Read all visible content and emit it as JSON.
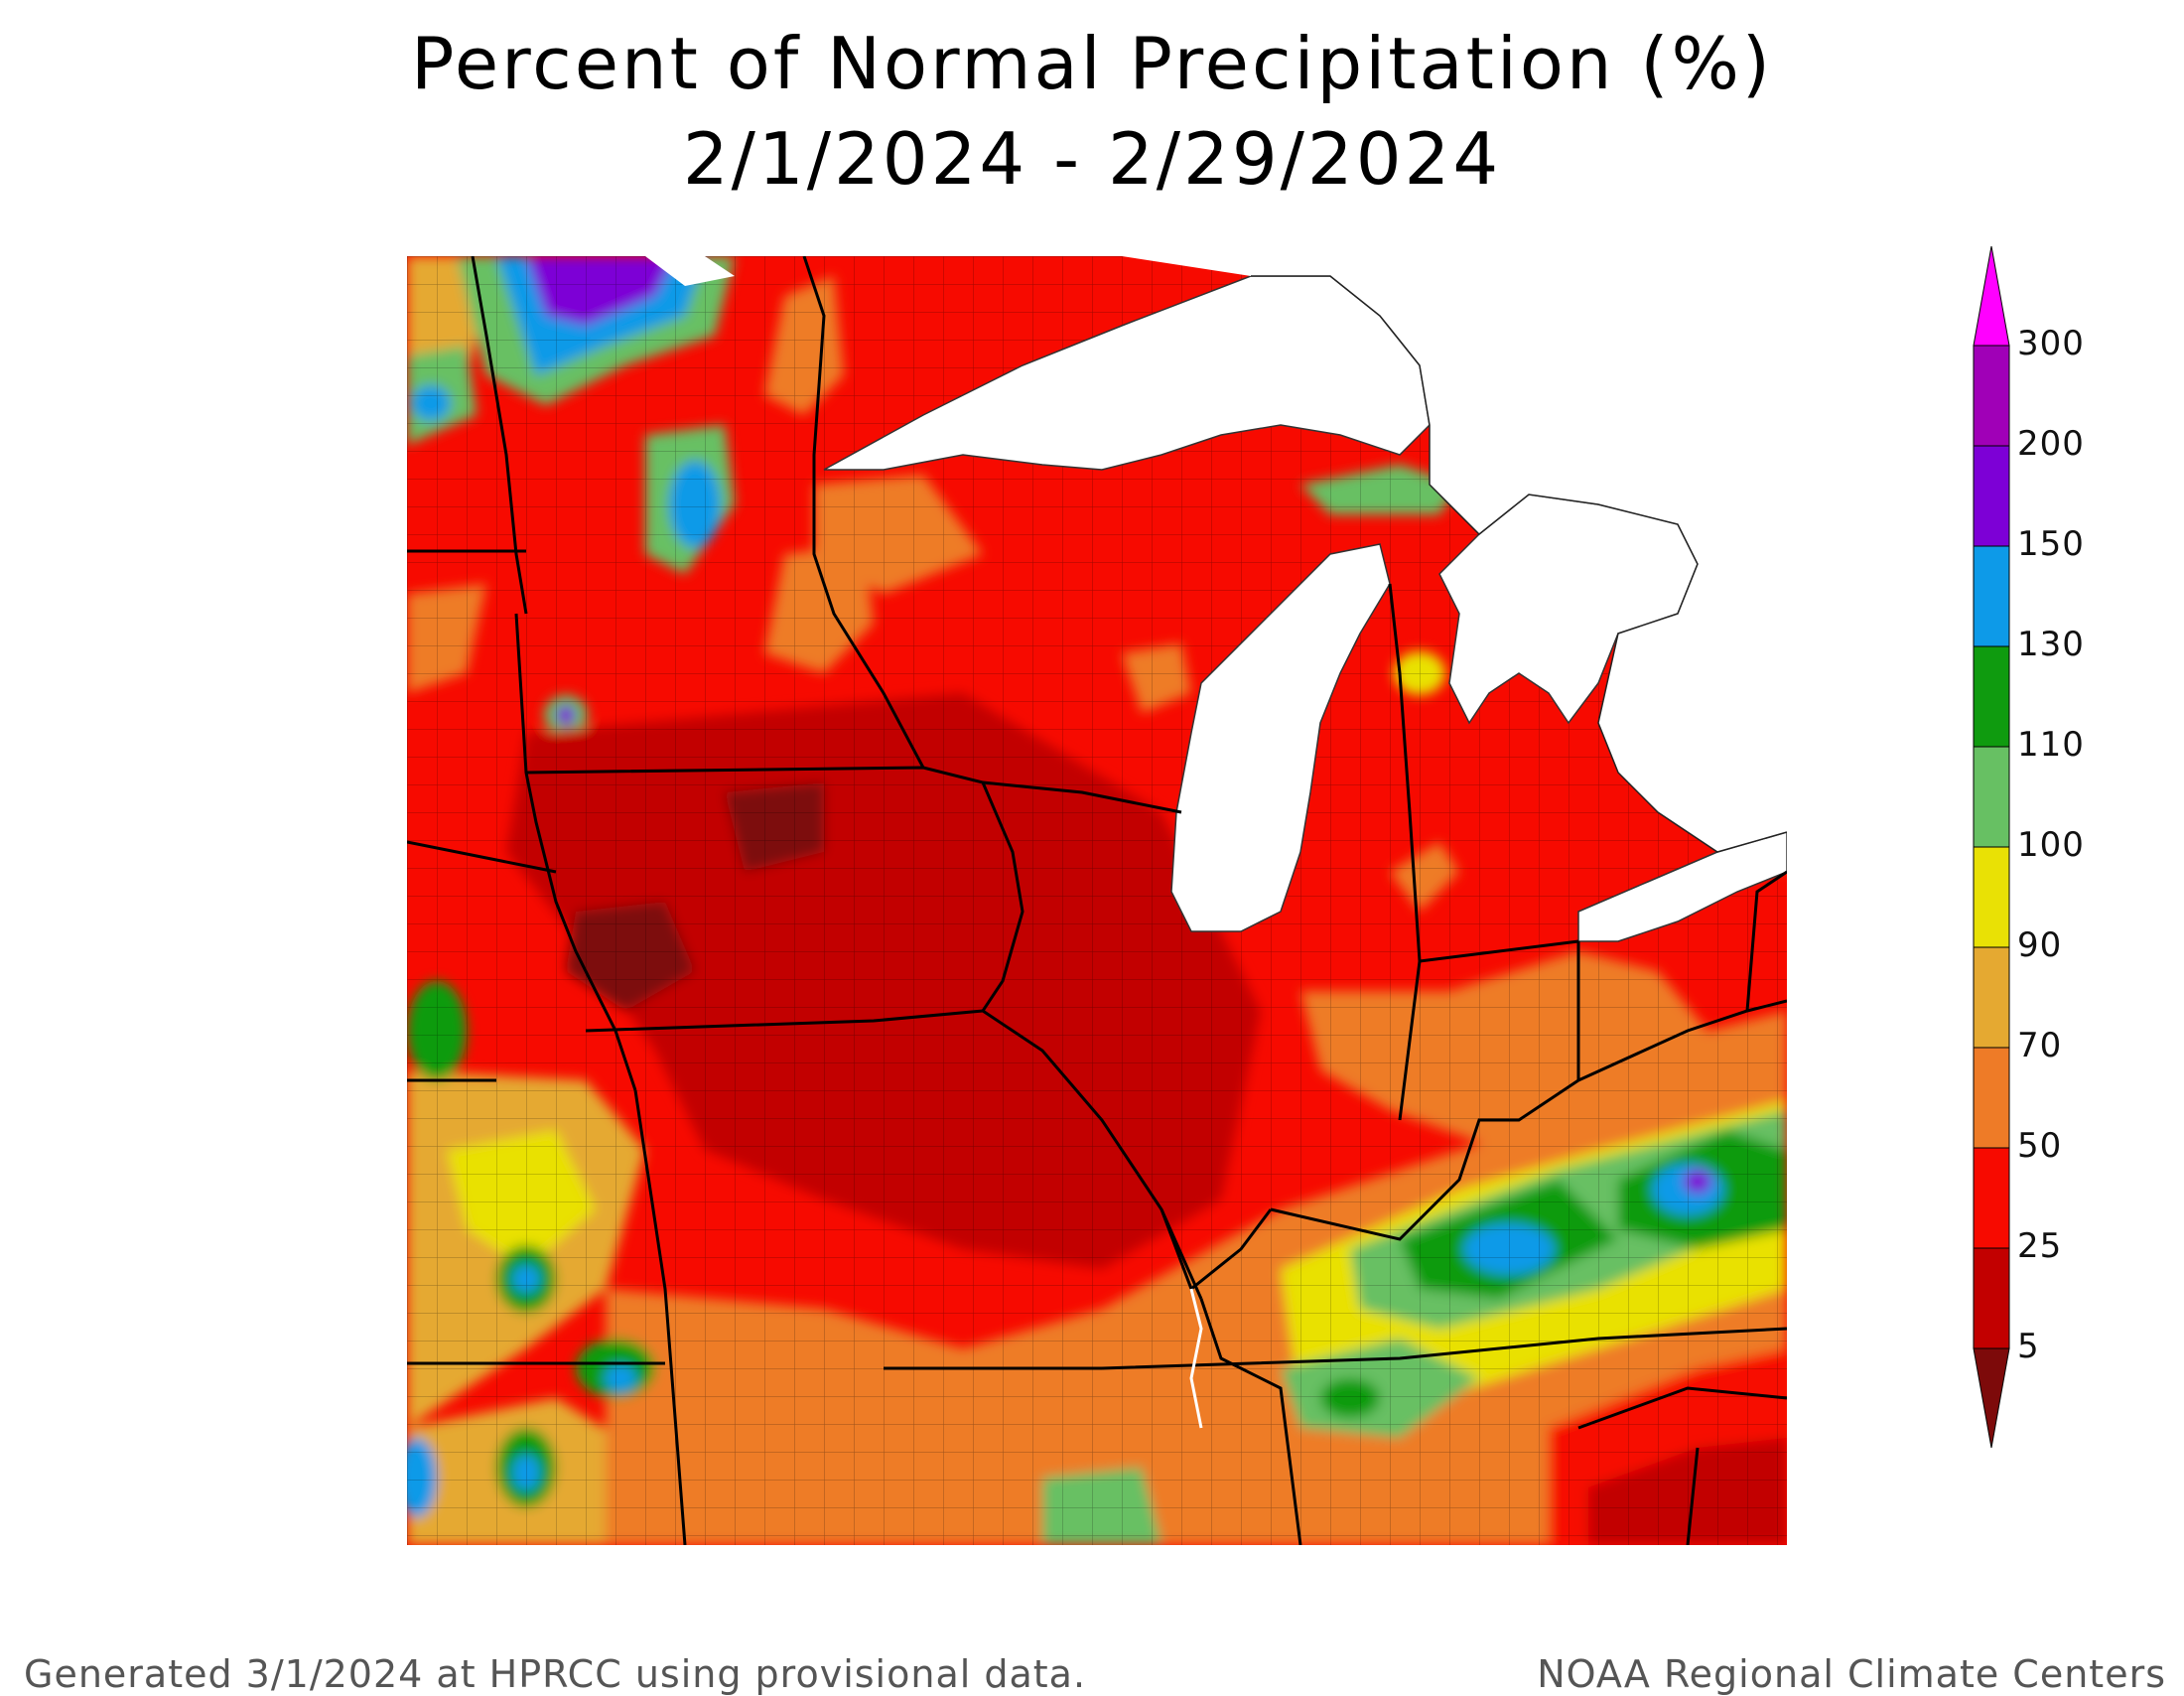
{
  "title": "Percent of Normal Precipitation (%)",
  "date_range": "2/1/2024 - 2/29/2024",
  "legend": {
    "tick_labels": [
      "5",
      "25",
      "50",
      "70",
      "90",
      "100",
      "110",
      "130",
      "150",
      "200",
      "300"
    ],
    "colors": [
      "#7d0a0a",
      "#c20000",
      "#f70a00",
      "#ee7b27",
      "#e5a931",
      "#e9e105",
      "#67c063",
      "#0f9b0f",
      "#0d9ae8",
      "#7d00d6",
      "#a000b7",
      "#ff00ff"
    ]
  },
  "footer": {
    "left": "Generated 3/1/2024 at HPRCC using provisional data.",
    "right": "NOAA Regional Climate Centers"
  }
}
